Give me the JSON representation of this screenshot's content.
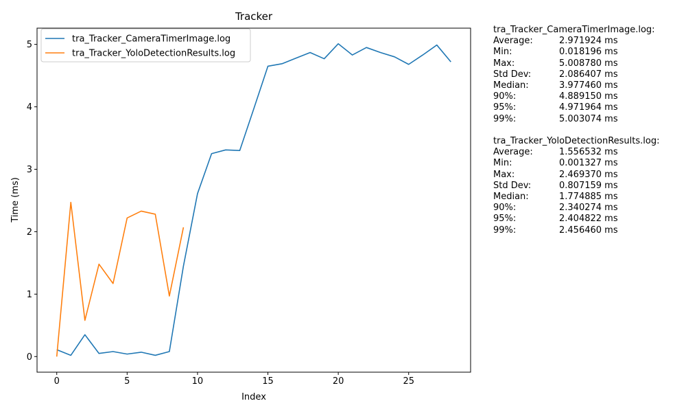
{
  "chart_data": {
    "type": "line",
    "title": "Tracker",
    "xlabel": "Index",
    "ylabel": "Time (ms)",
    "xlim": [
      -1.4,
      29.4
    ],
    "ylim": [
      -0.25,
      5.26
    ],
    "xticks": [
      0,
      5,
      10,
      15,
      20,
      25
    ],
    "yticks": [
      0,
      1,
      2,
      3,
      4,
      5
    ],
    "grid": false,
    "legend_position": "top-left",
    "series": [
      {
        "name": "tra_Tracker_CameraTimerImage.log",
        "color": "#1f77b4",
        "x": [
          0,
          1,
          2,
          3,
          4,
          5,
          6,
          7,
          8,
          9,
          10,
          11,
          12,
          13,
          14,
          15,
          16,
          17,
          18,
          19,
          20,
          21,
          22,
          23,
          24,
          25,
          26,
          27,
          28
        ],
        "values": [
          0.11,
          0.02,
          0.35,
          0.05,
          0.08,
          0.04,
          0.07,
          0.02,
          0.08,
          1.45,
          2.61,
          3.25,
          3.31,
          3.3,
          3.97,
          4.65,
          4.69,
          4.78,
          4.87,
          4.77,
          5.01,
          4.83,
          4.95,
          4.87,
          4.8,
          4.68,
          4.83,
          4.99,
          4.72
        ]
      },
      {
        "name": "tra_Tracker_YoloDetectionResults.log",
        "color": "#ff7f0e",
        "x": [
          0,
          1,
          2,
          3,
          4,
          5,
          6,
          7,
          8,
          9
        ],
        "values": [
          0.0,
          2.47,
          0.58,
          1.48,
          1.17,
          2.22,
          2.33,
          2.28,
          0.97,
          2.07
        ]
      }
    ]
  },
  "stats": [
    {
      "file": "tra_Tracker_CameraTimerImage.log:",
      "rows": [
        {
          "label": "Average:",
          "value": "2.971924 ms"
        },
        {
          "label": "Min:",
          "value": "0.018196 ms"
        },
        {
          "label": "Max:",
          "value": "5.008780 ms"
        },
        {
          "label": "Std Dev:",
          "value": "2.086407 ms"
        },
        {
          "label": "Median:",
          "value": "3.977460 ms"
        },
        {
          "label": "90%:",
          "value": "4.889150 ms"
        },
        {
          "label": "95%:",
          "value": "4.971964 ms"
        },
        {
          "label": "99%:",
          "value": "5.003074 ms"
        }
      ]
    },
    {
      "file": "tra_Tracker_YoloDetectionResults.log:",
      "rows": [
        {
          "label": "Average:",
          "value": "1.556532 ms"
        },
        {
          "label": "Min:",
          "value": "0.001327 ms"
        },
        {
          "label": "Max:",
          "value": "2.469370 ms"
        },
        {
          "label": "Std Dev:",
          "value": "0.807159 ms"
        },
        {
          "label": "Median:",
          "value": "1.774885 ms"
        },
        {
          "label": "90%:",
          "value": "2.340274 ms"
        },
        {
          "label": "95%:",
          "value": "2.404822 ms"
        },
        {
          "label": "99%:",
          "value": "2.456460 ms"
        }
      ]
    }
  ]
}
